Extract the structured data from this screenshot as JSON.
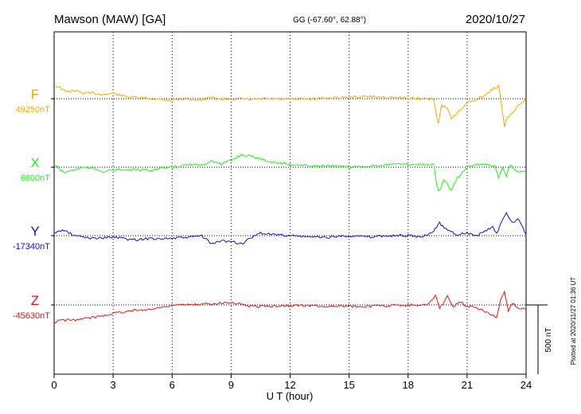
{
  "header": {
    "station": "Mawson (MAW)  [GA]",
    "coords": "GG (-67.60°,  62.88°)",
    "date": "2020/10/27"
  },
  "footer_note": "Plotted at 2020/11/27 01:36 UT",
  "scale_bar_label": "500 nT",
  "chart_data": {
    "type": "line",
    "xlabel": "U T (hour)",
    "ylabel": "",
    "xlim": [
      0,
      24
    ],
    "x_ticks": [
      0,
      3,
      6,
      9,
      12,
      15,
      18,
      21,
      24
    ],
    "grid": true,
    "scale_bar_nT": 500,
    "series": [
      {
        "name": "F",
        "baseline_label": "49250nT",
        "baseline_nT": 49250,
        "color": "#f5a800",
        "points": [
          [
            0,
            49350
          ],
          [
            0.3,
            49330
          ],
          [
            0.6,
            49300
          ],
          [
            1,
            49310
          ],
          [
            1.5,
            49290
          ],
          [
            2,
            49290
          ],
          [
            2.5,
            49280
          ],
          [
            3,
            49290
          ],
          [
            3.5,
            49270
          ],
          [
            4,
            49260
          ],
          [
            5,
            49250
          ],
          [
            6,
            49240
          ],
          [
            6.8,
            49250
          ],
          [
            7.5,
            49240
          ],
          [
            8,
            49260
          ],
          [
            8.5,
            49245
          ],
          [
            9,
            49250
          ],
          [
            10,
            49245
          ],
          [
            11,
            49250
          ],
          [
            12,
            49245
          ],
          [
            13,
            49250
          ],
          [
            14,
            49255
          ],
          [
            15,
            49260
          ],
          [
            16,
            49265
          ],
          [
            17,
            49260
          ],
          [
            18,
            49255
          ],
          [
            19,
            49250
          ],
          [
            19.3,
            49250
          ],
          [
            19.45,
            49120
          ],
          [
            19.55,
            49080
          ],
          [
            19.7,
            49200
          ],
          [
            20,
            49180
          ],
          [
            20.2,
            49100
          ],
          [
            20.5,
            49150
          ],
          [
            20.7,
            49170
          ],
          [
            21,
            49220
          ],
          [
            21.5,
            49250
          ],
          [
            22,
            49280
          ],
          [
            22.3,
            49320
          ],
          [
            22.6,
            49340
          ],
          [
            22.7,
            49260
          ],
          [
            22.8,
            49150
          ],
          [
            22.9,
            49050
          ],
          [
            23,
            49100
          ],
          [
            23.3,
            49150
          ],
          [
            23.6,
            49200
          ],
          [
            24,
            49250
          ]
        ]
      },
      {
        "name": "X",
        "baseline_label": "6600nT",
        "baseline_nT": 6600,
        "color": "#22ee22",
        "points": [
          [
            0,
            6620
          ],
          [
            0.5,
            6560
          ],
          [
            1,
            6580
          ],
          [
            1.5,
            6600
          ],
          [
            2,
            6590
          ],
          [
            2.5,
            6570
          ],
          [
            3,
            6580
          ],
          [
            4,
            6580
          ],
          [
            5,
            6580
          ],
          [
            6,
            6600
          ],
          [
            7,
            6620
          ],
          [
            7.5,
            6610
          ],
          [
            8,
            6650
          ],
          [
            8.5,
            6620
          ],
          [
            9,
            6650
          ],
          [
            9.5,
            6690
          ],
          [
            10,
            6680
          ],
          [
            11,
            6640
          ],
          [
            12,
            6620
          ],
          [
            13,
            6610
          ],
          [
            14,
            6610
          ],
          [
            15,
            6600
          ],
          [
            16,
            6610
          ],
          [
            17,
            6620
          ],
          [
            18,
            6620
          ],
          [
            19,
            6620
          ],
          [
            19.3,
            6620
          ],
          [
            19.45,
            6480
          ],
          [
            19.55,
            6420
          ],
          [
            19.8,
            6500
          ],
          [
            20,
            6480
          ],
          [
            20.2,
            6430
          ],
          [
            20.5,
            6520
          ],
          [
            21,
            6600
          ],
          [
            21.5,
            6620
          ],
          [
            22,
            6620
          ],
          [
            22.4,
            6610
          ],
          [
            22.6,
            6530
          ],
          [
            22.8,
            6600
          ],
          [
            23,
            6540
          ],
          [
            23.2,
            6620
          ],
          [
            23.5,
            6570
          ],
          [
            24,
            6560
          ]
        ]
      },
      {
        "name": "Y",
        "baseline_label": "-17340nT",
        "baseline_nT": -17340,
        "color": "#1010dd",
        "points": [
          [
            0,
            -17320
          ],
          [
            0.5,
            -17300
          ],
          [
            1,
            -17340
          ],
          [
            2,
            -17360
          ],
          [
            3,
            -17350
          ],
          [
            4,
            -17370
          ],
          [
            5,
            -17360
          ],
          [
            6,
            -17360
          ],
          [
            7,
            -17350
          ],
          [
            7.5,
            -17340
          ],
          [
            8,
            -17400
          ],
          [
            8.5,
            -17380
          ],
          [
            9,
            -17380
          ],
          [
            9.5,
            -17400
          ],
          [
            10,
            -17360
          ],
          [
            10.5,
            -17320
          ],
          [
            11,
            -17330
          ],
          [
            12,
            -17340
          ],
          [
            13,
            -17350
          ],
          [
            14,
            -17350
          ],
          [
            15,
            -17340
          ],
          [
            16,
            -17350
          ],
          [
            17,
            -17340
          ],
          [
            18,
            -17340
          ],
          [
            18.5,
            -17350
          ],
          [
            19,
            -17340
          ],
          [
            19.3,
            -17300
          ],
          [
            19.6,
            -17250
          ],
          [
            20,
            -17300
          ],
          [
            20.5,
            -17330
          ],
          [
            21,
            -17320
          ],
          [
            21.5,
            -17340
          ],
          [
            22,
            -17300
          ],
          [
            22.3,
            -17280
          ],
          [
            22.5,
            -17330
          ],
          [
            22.8,
            -17220
          ],
          [
            23,
            -17180
          ],
          [
            23.3,
            -17250
          ],
          [
            23.6,
            -17220
          ],
          [
            24,
            -17330
          ]
        ]
      },
      {
        "name": "Z",
        "baseline_label": "-45630nT",
        "baseline_nT": -45630,
        "color": "#ee1111",
        "points": [
          [
            0,
            -45760
          ],
          [
            0.3,
            -45740
          ],
          [
            1,
            -45740
          ],
          [
            2,
            -45720
          ],
          [
            3,
            -45690
          ],
          [
            4,
            -45670
          ],
          [
            5,
            -45660
          ],
          [
            6,
            -45630
          ],
          [
            7,
            -45630
          ],
          [
            8,
            -45620
          ],
          [
            9,
            -45610
          ],
          [
            10,
            -45640
          ],
          [
            11,
            -45640
          ],
          [
            12,
            -45635
          ],
          [
            13,
            -45635
          ],
          [
            14,
            -45640
          ],
          [
            15,
            -45640
          ],
          [
            16,
            -45640
          ],
          [
            17,
            -45635
          ],
          [
            18,
            -45630
          ],
          [
            19,
            -45630
          ],
          [
            19.4,
            -45560
          ],
          [
            19.6,
            -45660
          ],
          [
            20,
            -45560
          ],
          [
            20.3,
            -45650
          ],
          [
            20.6,
            -45600
          ],
          [
            21,
            -45640
          ],
          [
            21.5,
            -45650
          ],
          [
            22,
            -45680
          ],
          [
            22.5,
            -45720
          ],
          [
            22.7,
            -45600
          ],
          [
            22.9,
            -45540
          ],
          [
            23.1,
            -45680
          ],
          [
            23.3,
            -45620
          ],
          [
            23.6,
            -45650
          ],
          [
            24,
            -45660
          ]
        ]
      }
    ]
  }
}
